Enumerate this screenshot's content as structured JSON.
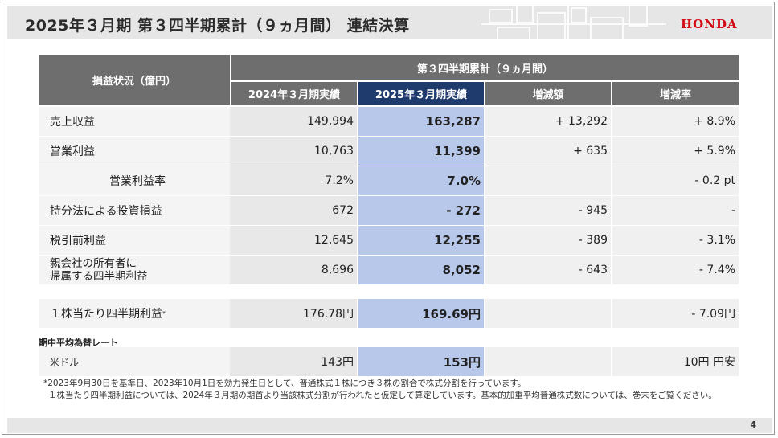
{
  "header": {
    "title": "2025年３月期 第３四半期累計（９ヵ月間） 連結決算",
    "logo_text": "HONDA",
    "logo_color": "#d10a14"
  },
  "table": {
    "row_header": "損益状況（億円）",
    "group_header": "第３四半期累計（９ヵ月間）",
    "columns": [
      "2024年３月期実績",
      "2025年３月期実績",
      "増減額",
      "増減率"
    ],
    "rows": [
      {
        "label": "売上収益",
        "prev": "149,994",
        "curr": "163,287",
        "diff": "+ 13,292",
        "rate": "+ 8.9%"
      },
      {
        "label": "営業利益",
        "prev": "10,763",
        "curr": "11,399",
        "diff": "+ 635",
        "rate": "+ 5.9%"
      },
      {
        "label": "営業利益率",
        "prev": "7.2%",
        "curr": "7.0%",
        "diff": "",
        "rate": "- 0.2 pt"
      },
      {
        "label": "持分法による投資損益",
        "prev": "672",
        "curr": "- 272",
        "diff": "- 945",
        "rate": "-"
      },
      {
        "label": "税引前利益",
        "prev": "12,645",
        "curr": "12,255",
        "diff": "- 389",
        "rate": "- 3.1%"
      },
      {
        "label_line1": "親会社の所有者に",
        "label_line2": "帰属する四半期利益",
        "prev": "8,696",
        "curr": "8,052",
        "diff": "- 643",
        "rate": "- 7.4%"
      }
    ],
    "eps": {
      "label": "１株当たり四半期利益",
      "mark": "*",
      "prev": "176.78円",
      "curr": "169.69円",
      "rate": "- 7.09円"
    }
  },
  "fx": {
    "section_label": "期中平均為替レート",
    "label": "米ドル",
    "prev": "143円",
    "curr": "153円",
    "rate": "10円 円安"
  },
  "footnotes": [
    "*2023年9月30日を基準日、2023年10月1日を効力発生日として、普通株式１株につき３株の割合で株式分割を行っています。",
    "１株当たり四半期利益については、2024年３月期の期首より当該株式分割が行われたと仮定して算定しています。基本的加重平均普通株式数については、巻末をご覧ください。"
  ],
  "page_number": "4",
  "colors": {
    "header_gray": "#6e6e6e",
    "active_column_header": "#1f3a6d",
    "active_column_fill": "#b8c8ea"
  }
}
